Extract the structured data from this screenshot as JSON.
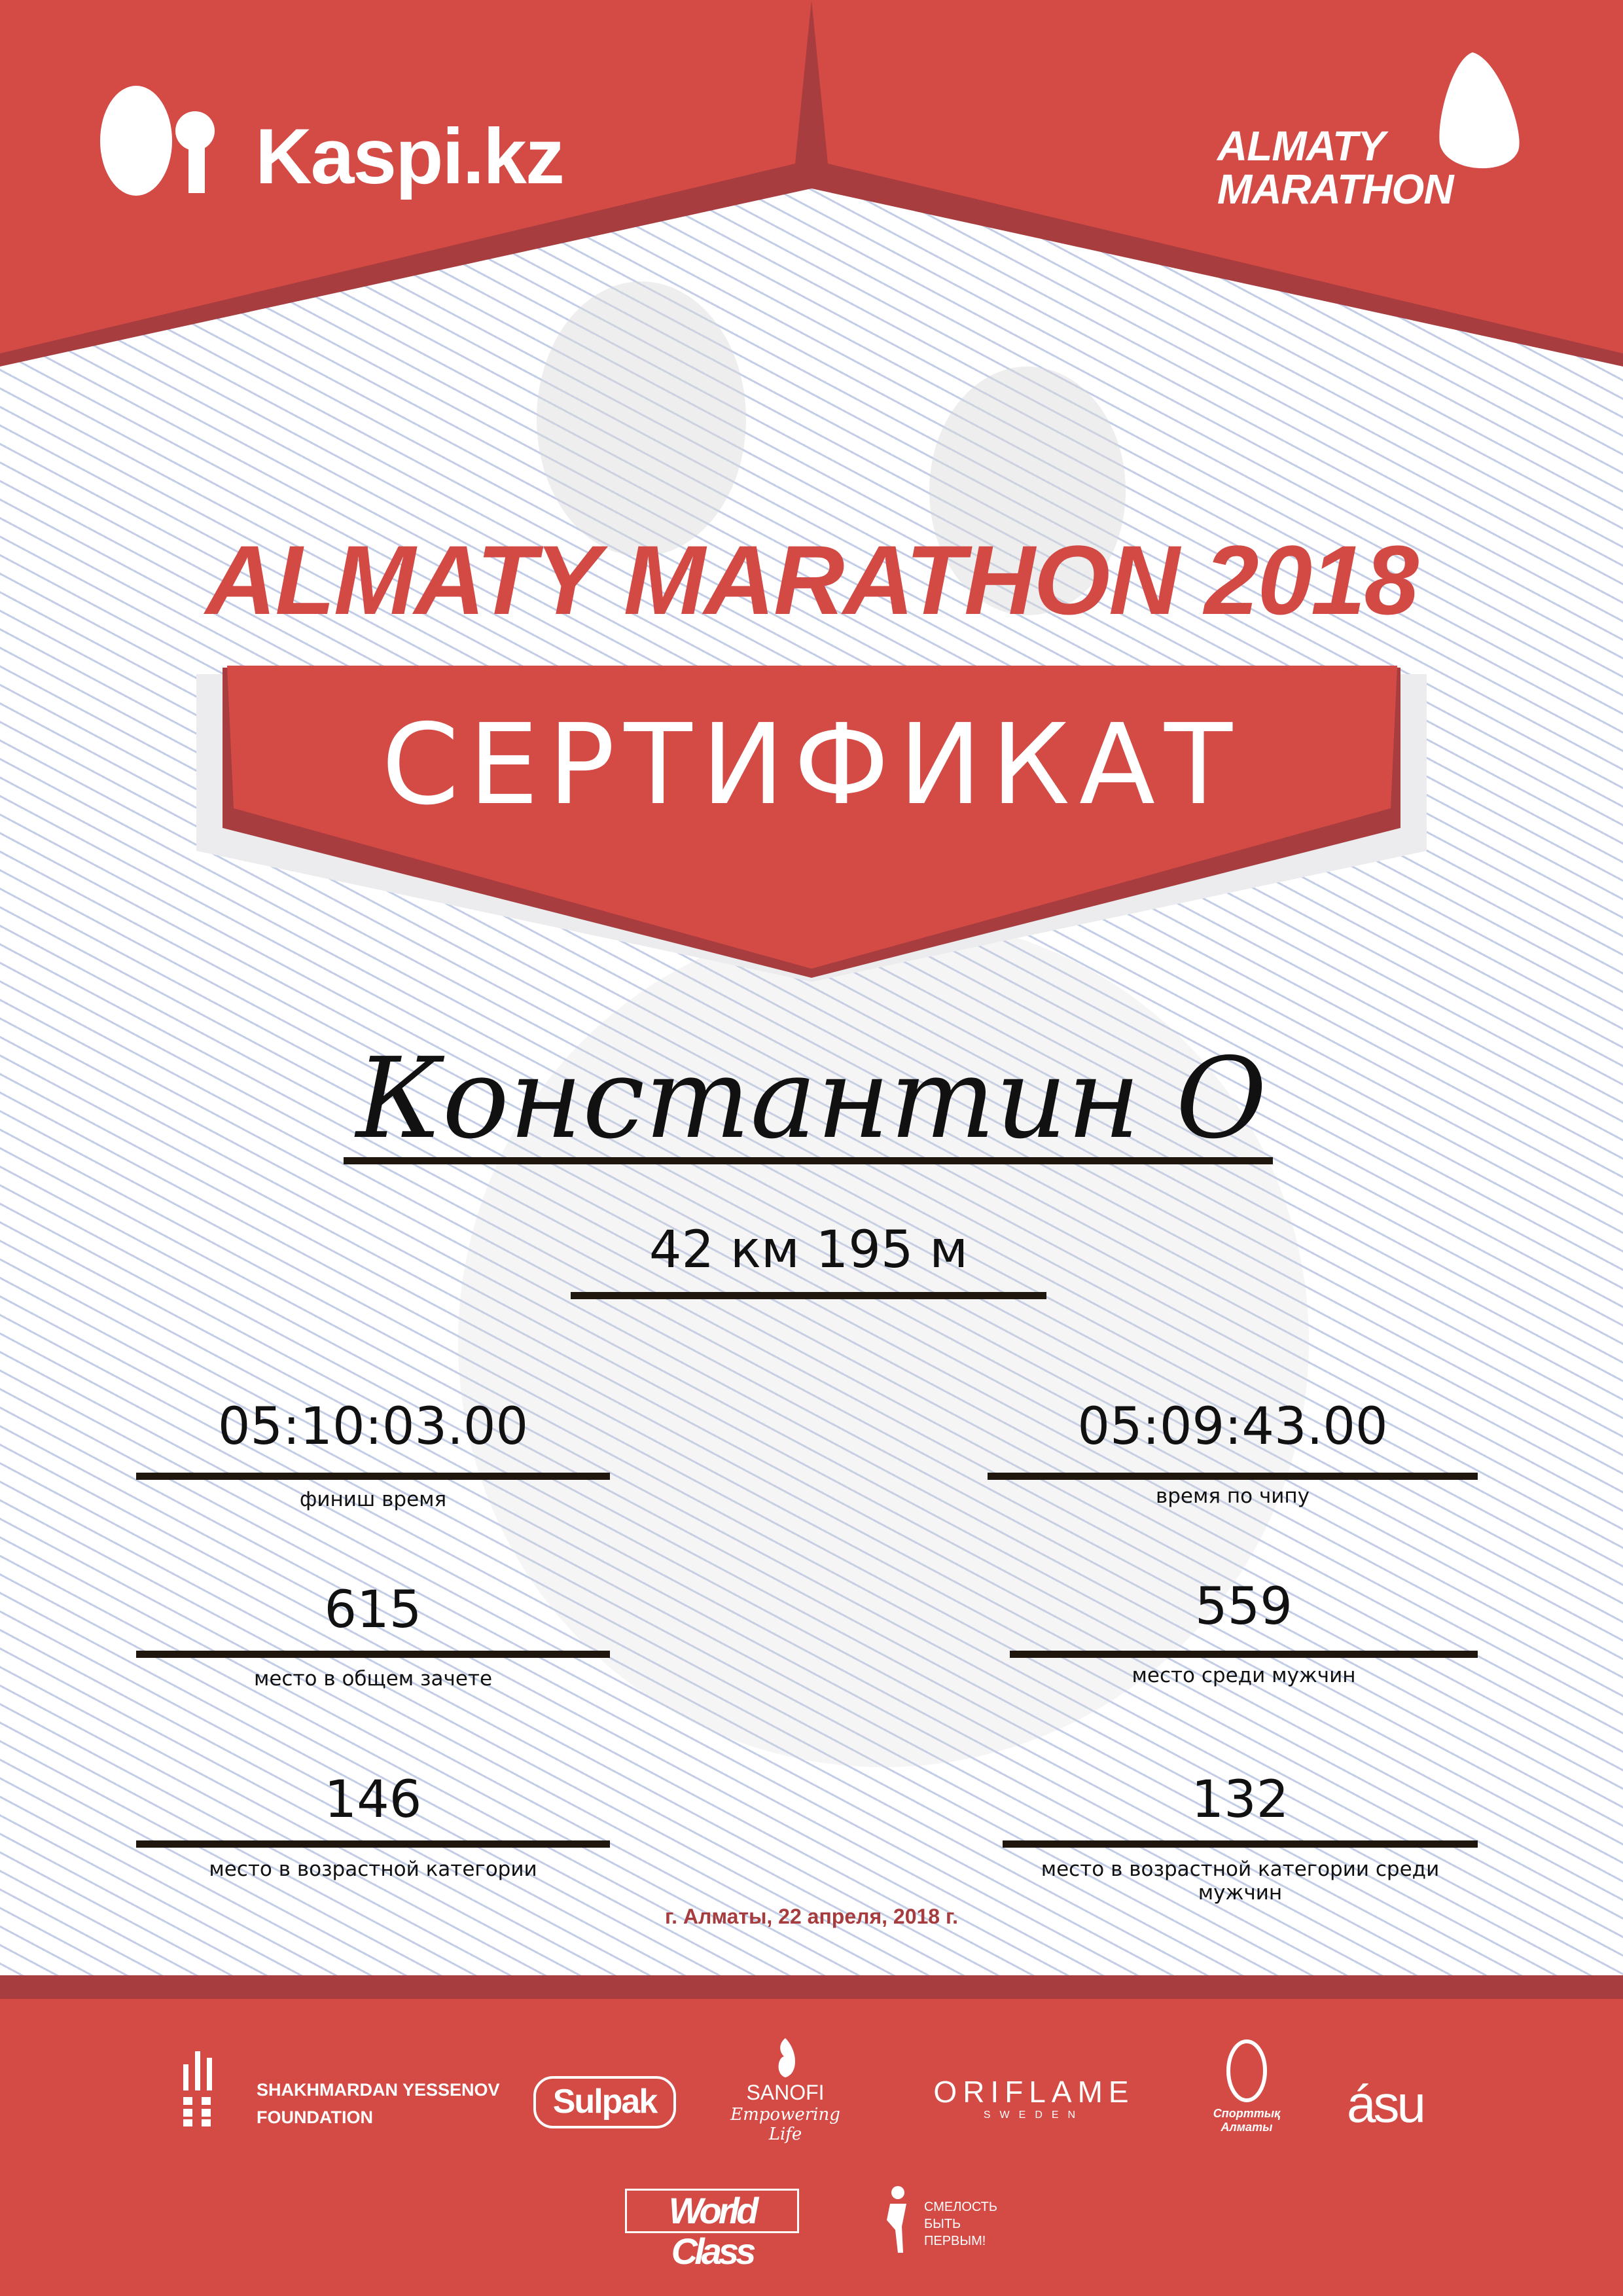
{
  "colors": {
    "brand_red": "#d44a45",
    "dark_red": "#a73d3f",
    "text": "#111111",
    "lines": "#c3cde6"
  },
  "header": {
    "sponsor_logo": "Kaspi.kz",
    "event_logo_line1": "ALMATY",
    "event_logo_line2": "MARATHON"
  },
  "title": "ALMATY MARATHON 2018",
  "banner": "СЕРТИФИКАТ",
  "participant_name": "Константин О",
  "distance": "42 км 195 м",
  "results": [
    {
      "value": "05:10:03.00",
      "label": "финиш время"
    },
    {
      "value": "05:09:43.00",
      "label": "время по чипу"
    },
    {
      "value": "615",
      "label": "место в общем зачете"
    },
    {
      "value": "559",
      "label": "место среди мужчин"
    },
    {
      "value": "146",
      "label": "место в возрастной категории"
    },
    {
      "value": "132",
      "label": "место в возрастной категории среди мужчин"
    }
  ],
  "date_place": "г. Алматы, 22 апреля, 2018 г.",
  "partners": {
    "yessenov_line1": "SHAKHMARDAN YESSENOV",
    "yessenov_line2": "FOUNDATION",
    "sulpak": "Sulpak",
    "sanofi": "SANOFI",
    "sanofi_tagline": "Empowering Life",
    "oriflame": "ORIFLAME",
    "oriflame_sub": "SWEDEN",
    "sport_almaty": "Спорттық Алматы",
    "asu": "ásu",
    "worldclass": "World Class",
    "fund_line1": "СМЕЛОСТЬ",
    "fund_line2": "БЫТЬ",
    "fund_line3": "ПЕРВЫМ!"
  }
}
